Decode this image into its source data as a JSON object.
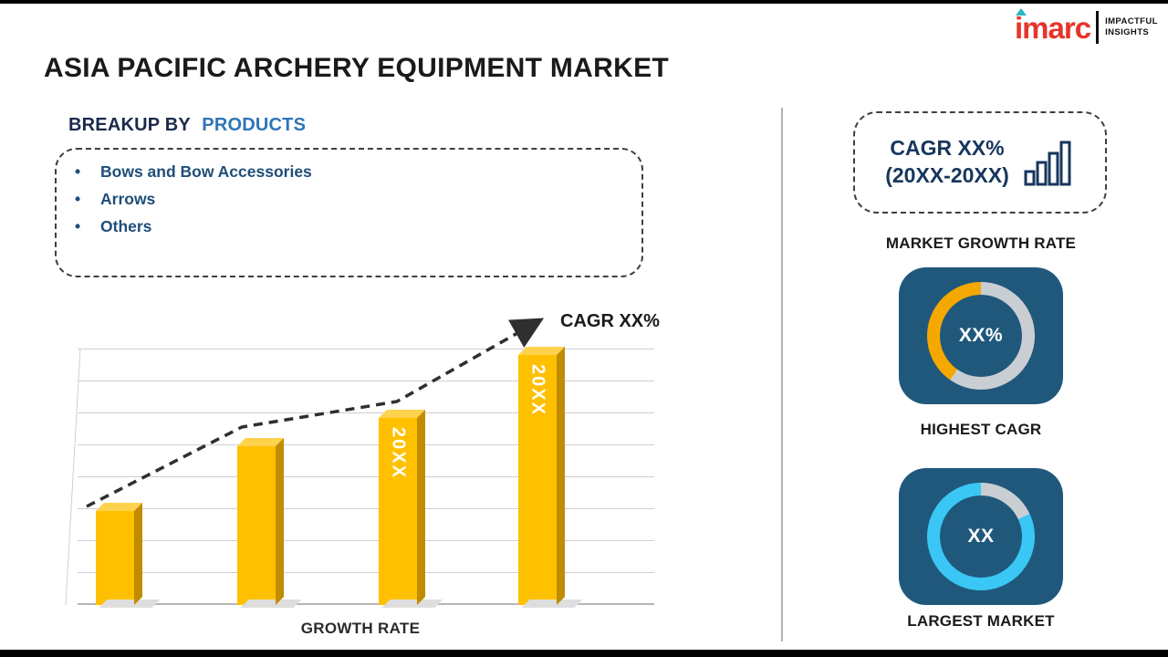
{
  "page": {
    "title": "ASIA PACIFIC ARCHERY EQUIPMENT MARKET"
  },
  "logo": {
    "brand": "imarc",
    "tagline": [
      "IMPACTFUL",
      "INSIGHTS"
    ]
  },
  "breakup": {
    "heading_prefix": "BREAKUP BY",
    "heading_highlight": "PRODUCTS",
    "items": [
      "Bows and Bow Accessories",
      "Arrows",
      "Others"
    ]
  },
  "chart_data": [
    {
      "type": "bar",
      "title": "GROWTH RATE",
      "categories": [
        "20XX",
        "20XX",
        "20XX",
        "20XX"
      ],
      "values": [
        36,
        61,
        72,
        96
      ],
      "visible_bar_labels": [
        "",
        "",
        "20XX",
        "20XX"
      ],
      "bar_color": "#FFC000",
      "xlabel": "GROWTH RATE",
      "ylabel": "",
      "ylim": [
        0,
        100
      ],
      "grid": true,
      "trend": {
        "label": "CAGR XX%",
        "style": "dashed-arrow-ascending"
      }
    },
    {
      "type": "pie",
      "subtype": "donut",
      "label": "HIGHEST CAGR",
      "center_text": "XX%",
      "slices": [
        {
          "name": "remainder",
          "color": "#C9CED3",
          "from": 0,
          "to": 215
        },
        {
          "name": "cagr-highlight",
          "color": "#F5A800",
          "from": 215,
          "to": 360
        }
      ]
    },
    {
      "type": "pie",
      "subtype": "donut",
      "label": "LARGEST MARKET",
      "center_text": "XX",
      "slices": [
        {
          "name": "remainder",
          "color": "#C9CED3",
          "from": 0,
          "to": 65
        },
        {
          "name": "market-highlight",
          "color": "#3BC7F5",
          "from": 65,
          "to": 360
        }
      ]
    }
  ],
  "right_panel": {
    "cagr_box": {
      "line1": "CAGR XX%",
      "line2": "(20XX-20XX)",
      "icon": "bar-chart-icon"
    },
    "market_growth_label": "MARKET GROWTH RATE"
  },
  "colors": {
    "accent_yellow": "#FFC000",
    "panel_blue": "#20587C",
    "accent_cyan": "#3BC7F5",
    "accent_orange": "#F5A800",
    "brand_red": "#E63429",
    "text_navy": "#17365D",
    "text_blue": "#2E75B6"
  }
}
